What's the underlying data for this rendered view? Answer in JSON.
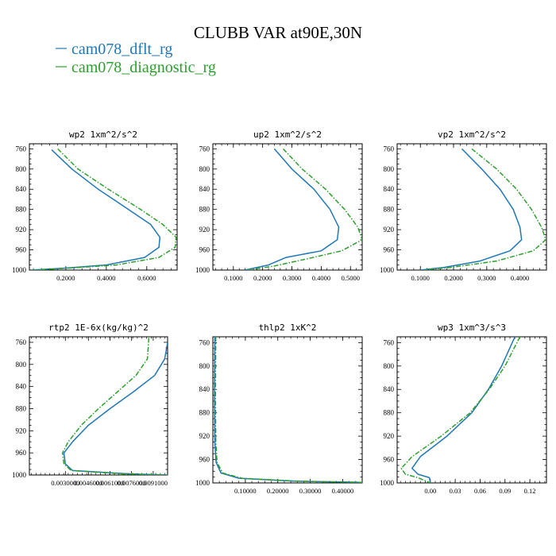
{
  "figure": {
    "title": "CLUBB VAR at90E,30N",
    "legend": [
      {
        "name": "cam078_dflt_rg",
        "color": "#1f77b4",
        "dashed": false
      },
      {
        "name": "cam078_diagnostic_rg",
        "color": "#2ca02c",
        "dashed": true
      }
    ]
  },
  "chart_data": [
    {
      "type": "line",
      "title": "wp2  1xm^2/s^2",
      "xlim": [
        0.02,
        0.75
      ],
      "ylim": [
        1000,
        750
      ],
      "xticks": [
        0.2,
        0.4,
        0.6
      ],
      "xtick_labels": [
        "0.2000",
        "0.4000",
        "0.6000"
      ],
      "yticks": [
        760,
        800,
        840,
        880,
        920,
        960,
        1000
      ],
      "ytick_labels": [
        "760",
        "800",
        "840",
        "880",
        "920",
        "960",
        "1000"
      ],
      "series": [
        {
          "name": "cam078_dflt_rg",
          "points": [
            [
              0.13,
              762
            ],
            [
              0.23,
              800
            ],
            [
              0.36,
              840
            ],
            [
              0.51,
              880
            ],
            [
              0.62,
              910
            ],
            [
              0.665,
              935
            ],
            [
              0.66,
              955
            ],
            [
              0.59,
              975
            ],
            [
              0.4,
              990
            ],
            [
              0.2,
              996
            ],
            [
              0.03,
              1000
            ]
          ]
        },
        {
          "name": "cam078_diagnostic_rg",
          "points": [
            [
              0.16,
              760
            ],
            [
              0.26,
              800
            ],
            [
              0.41,
              840
            ],
            [
              0.57,
              880
            ],
            [
              0.68,
              910
            ],
            [
              0.745,
              935
            ],
            [
              0.74,
              955
            ],
            [
              0.66,
              975
            ],
            [
              0.45,
              990
            ],
            [
              0.22,
              996
            ],
            [
              0.04,
              1000
            ]
          ]
        }
      ]
    },
    {
      "type": "line",
      "title": "up2  1xm^2/s^2",
      "xlim": [
        0.03,
        0.54
      ],
      "ylim": [
        1000,
        750
      ],
      "xticks": [
        0.1,
        0.2,
        0.3,
        0.4,
        0.5
      ],
      "xtick_labels": [
        "0.1000",
        "0.2000",
        "0.3000",
        "0.4000",
        "0.5000"
      ],
      "yticks": [
        760,
        800,
        840,
        880,
        920,
        960,
        1000
      ],
      "ytick_labels": [
        "760",
        "800",
        "840",
        "880",
        "920",
        "960",
        "1000"
      ],
      "series": [
        {
          "name": "cam078_dflt_rg",
          "points": [
            [
              0.24,
              760
            ],
            [
              0.3,
              800
            ],
            [
              0.375,
              840
            ],
            [
              0.43,
              880
            ],
            [
              0.46,
              915
            ],
            [
              0.455,
              940
            ],
            [
              0.4,
              962
            ],
            [
              0.28,
              975
            ],
            [
              0.22,
              990
            ],
            [
              0.14,
              1000
            ]
          ]
        },
        {
          "name": "cam078_diagnostic_rg",
          "points": [
            [
              0.27,
              760
            ],
            [
              0.335,
              800
            ],
            [
              0.415,
              840
            ],
            [
              0.48,
              880
            ],
            [
              0.525,
              915
            ],
            [
              0.54,
              940
            ],
            [
              0.47,
              962
            ],
            [
              0.35,
              978
            ],
            [
              0.24,
              992
            ],
            [
              0.15,
              1000
            ]
          ]
        }
      ]
    },
    {
      "type": "line",
      "title": "vp2  1xm^2/s^2",
      "xlim": [
        0.03,
        0.48
      ],
      "ylim": [
        1000,
        750
      ],
      "xticks": [
        0.1,
        0.2,
        0.3,
        0.4
      ],
      "xtick_labels": [
        "0.1000",
        "0.2000",
        "0.3000",
        "0.4000"
      ],
      "yticks": [
        760,
        800,
        840,
        880,
        920,
        960,
        1000
      ],
      "ytick_labels": [
        "760",
        "800",
        "840",
        "880",
        "920",
        "960",
        "1000"
      ],
      "series": [
        {
          "name": "cam078_dflt_rg",
          "points": [
            [
              0.225,
              760
            ],
            [
              0.285,
              800
            ],
            [
              0.34,
              840
            ],
            [
              0.38,
              880
            ],
            [
              0.4,
              915
            ],
            [
              0.405,
              940
            ],
            [
              0.37,
              962
            ],
            [
              0.28,
              982
            ],
            [
              0.17,
              995
            ],
            [
              0.1,
              1000
            ]
          ]
        },
        {
          "name": "cam078_diagnostic_rg",
          "points": [
            [
              0.255,
              760
            ],
            [
              0.33,
              800
            ],
            [
              0.39,
              840
            ],
            [
              0.435,
              880
            ],
            [
              0.465,
              915
            ],
            [
              0.478,
              940
            ],
            [
              0.44,
              962
            ],
            [
              0.33,
              982
            ],
            [
              0.19,
              995
            ],
            [
              0.11,
              1000
            ]
          ]
        }
      ]
    },
    {
      "type": "line",
      "title": "rtp2  1E-6x(kg/kg)^2",
      "xlim": [
        0.0005,
        0.0101
      ],
      "ylim": [
        1000,
        750
      ],
      "xticks": [
        0.003,
        0.0046,
        0.0061,
        0.0076,
        0.0091
      ],
      "xtick_labels": [
        "0.0030000",
        "0.0046000",
        "0.0061000",
        "0.0076000",
        "0.0091000"
      ],
      "yticks": [
        760,
        800,
        840,
        880,
        920,
        960,
        1000
      ],
      "ytick_labels": [
        "760",
        "800",
        "840",
        "880",
        "920",
        "960",
        "1000"
      ],
      "series": [
        {
          "name": "cam078_dflt_rg",
          "points": [
            [
              0.0101,
              760
            ],
            [
              0.0099,
              790
            ],
            [
              0.0092,
              820
            ],
            [
              0.0077,
              850
            ],
            [
              0.0061,
              880
            ],
            [
              0.0046,
              910
            ],
            [
              0.0035,
              940
            ],
            [
              0.0029,
              960
            ],
            [
              0.003,
              980
            ],
            [
              0.0035,
              992
            ],
            [
              0.0075,
              998
            ],
            [
              0.0101,
              1000
            ]
          ]
        },
        {
          "name": "cam078_diagnostic_rg",
          "points": [
            [
              0.0088,
              752
            ],
            [
              0.0087,
              790
            ],
            [
              0.0079,
              820
            ],
            [
              0.0066,
              850
            ],
            [
              0.0053,
              880
            ],
            [
              0.0041,
              910
            ],
            [
              0.0032,
              940
            ],
            [
              0.0028,
              960
            ],
            [
              0.0029,
              980
            ],
            [
              0.0034,
              992
            ],
            [
              0.007,
              998
            ],
            [
              0.0101,
              1000
            ]
          ]
        }
      ]
    },
    {
      "type": "line",
      "title": "thlp2  1xK^2",
      "xlim": [
        0.0,
        0.46
      ],
      "ylim": [
        1000,
        750
      ],
      "xticks": [
        0.1,
        0.2,
        0.3,
        0.4
      ],
      "xtick_labels": [
        "0.10000",
        "0.20000",
        "0.30000",
        "0.40000"
      ],
      "yticks": [
        760,
        800,
        840,
        880,
        920,
        960,
        1000
      ],
      "ytick_labels": [
        "760",
        "800",
        "840",
        "880",
        "920",
        "960",
        "1000"
      ],
      "series": [
        {
          "name": "cam078_dflt_rg",
          "points": [
            [
              0.006,
              750
            ],
            [
              0.005,
              850
            ],
            [
              0.006,
              930
            ],
            [
              0.01,
              965
            ],
            [
              0.025,
              983
            ],
            [
              0.08,
              992
            ],
            [
              0.25,
              997
            ],
            [
              0.46,
              999
            ]
          ]
        },
        {
          "name": "cam078_diagnostic_rg",
          "points": [
            [
              0.009,
              750
            ],
            [
              0.008,
              850
            ],
            [
              0.009,
              930
            ],
            [
              0.013,
              965
            ],
            [
              0.03,
              983
            ],
            [
              0.09,
              992
            ],
            [
              0.26,
              997
            ],
            [
              0.46,
              999
            ]
          ]
        }
      ]
    },
    {
      "type": "line",
      "title": "wp3  1xm^3/s^3",
      "xlim": [
        -0.04,
        0.14
      ],
      "ylim": [
        1000,
        750
      ],
      "xticks": [
        0.0,
        0.03,
        0.06,
        0.09,
        0.12
      ],
      "xtick_labels": [
        "0.00",
        "0.03",
        "0.06",
        "0.09",
        "0.12"
      ],
      "yticks": [
        760,
        800,
        840,
        880,
        920,
        960,
        1000
      ],
      "ytick_labels": [
        "760",
        "800",
        "840",
        "880",
        "920",
        "960",
        "1000"
      ],
      "series": [
        {
          "name": "cam078_dflt_rg",
          "points": [
            [
              0.102,
              750
            ],
            [
              0.086,
              800
            ],
            [
              0.07,
              840
            ],
            [
              0.05,
              880
            ],
            [
              0.02,
              920
            ],
            [
              -0.012,
              955
            ],
            [
              -0.022,
              975
            ],
            [
              -0.015,
              985
            ],
            [
              -0.001,
              991
            ],
            [
              0.0,
              1000
            ]
          ]
        },
        {
          "name": "cam078_diagnostic_rg",
          "points": [
            [
              0.108,
              750
            ],
            [
              0.09,
              800
            ],
            [
              0.071,
              840
            ],
            [
              0.048,
              880
            ],
            [
              0.013,
              920
            ],
            [
              -0.022,
              955
            ],
            [
              -0.035,
              975
            ],
            [
              -0.03,
              985
            ],
            [
              -0.015,
              991
            ],
            [
              0.0,
              1000
            ]
          ]
        }
      ]
    }
  ]
}
